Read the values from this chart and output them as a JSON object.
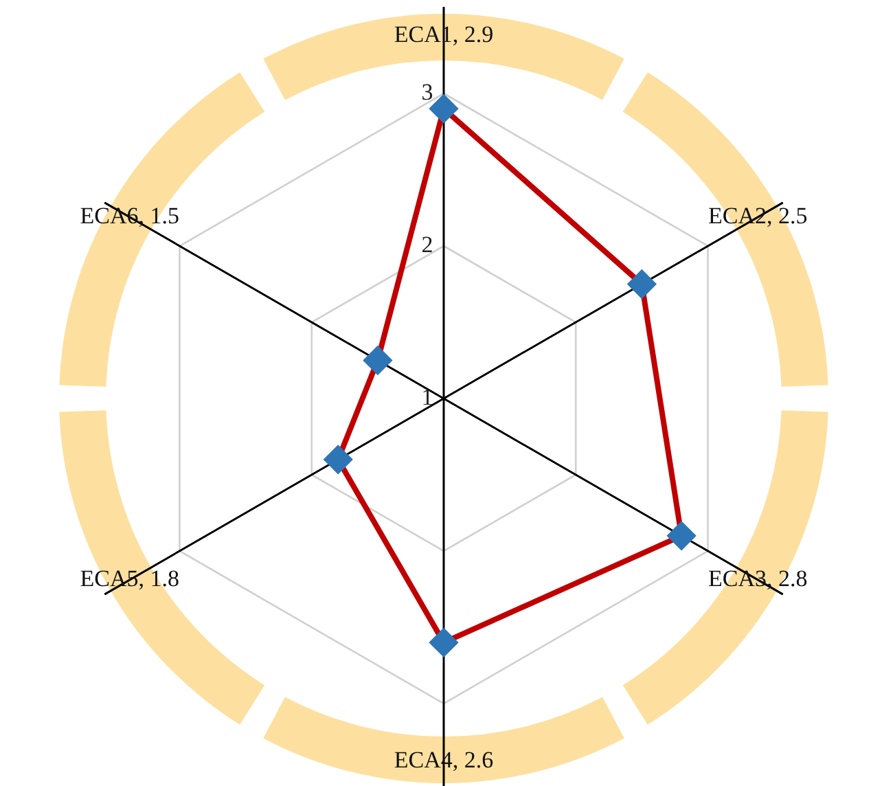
{
  "chart_data": {
    "type": "radar",
    "categories": [
      "ECA1, 2.9",
      "ECA2, 2.5",
      "ECA3, 2.8",
      "ECA4, 2.6",
      "ECA5, 1.8",
      "ECA6, 1.5"
    ],
    "series": [
      {
        "color": "#c00000",
        "colors": [
          "#2e75b6",
          "#2e75b6",
          "#2e75b6",
          "#2e75b6",
          "#2e75b6",
          "#2e75b6"
        ],
        "values": [
          2.9,
          2.5,
          2.8,
          2.6,
          1.8,
          1.5
        ]
      }
    ],
    "ylim": [
      1,
      3
    ],
    "yticks": [
      1,
      2,
      3
    ],
    "grid": true,
    "legend": false,
    "marker": "diamond"
  }
}
